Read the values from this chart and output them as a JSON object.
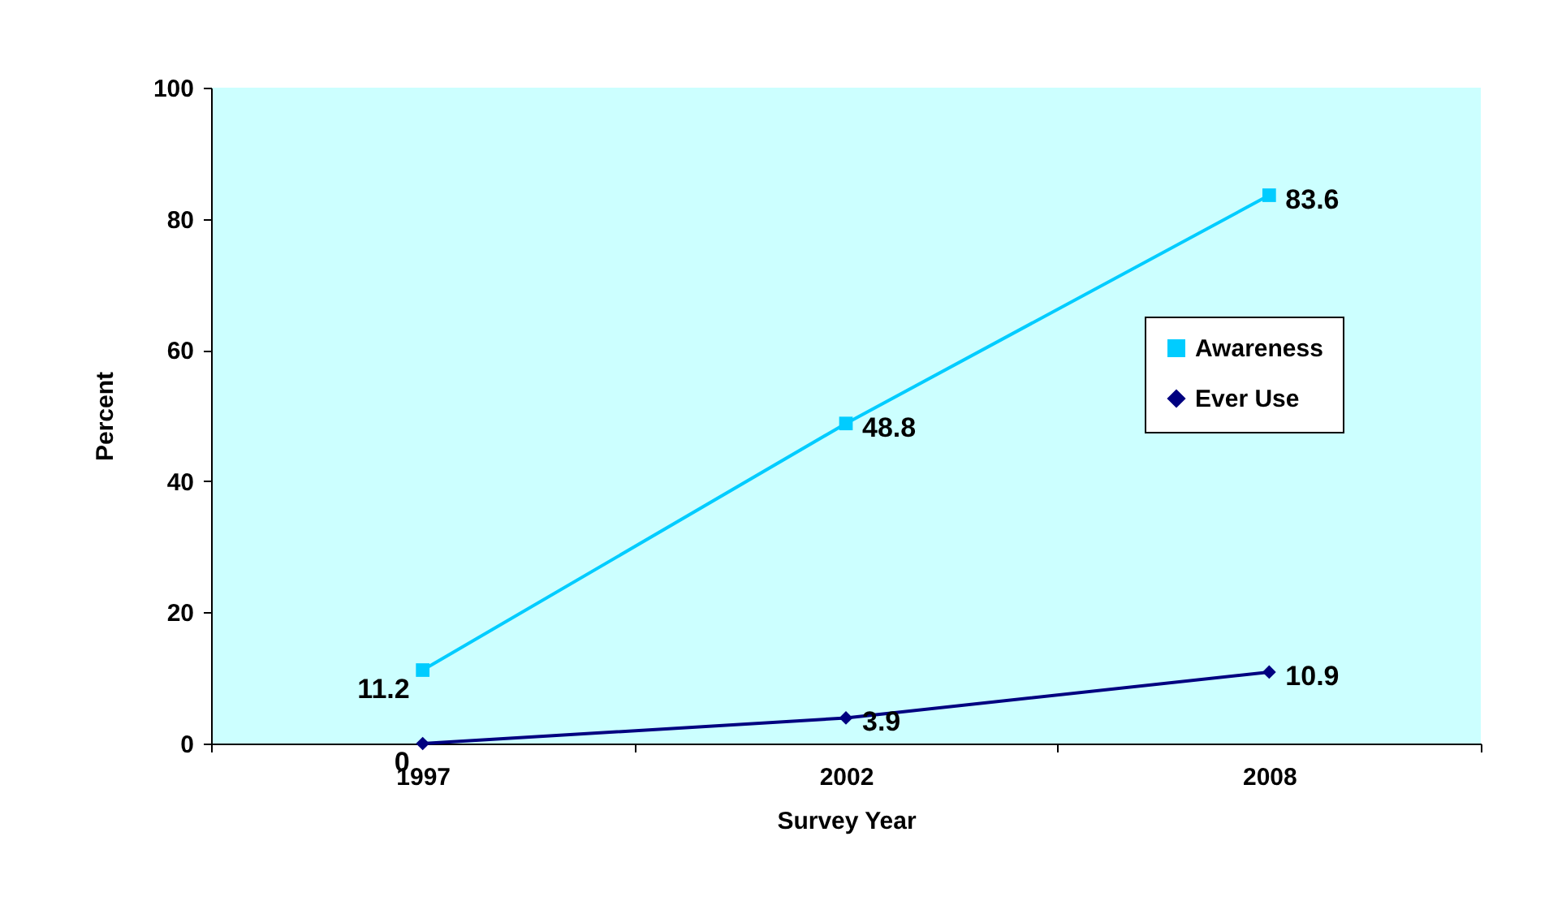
{
  "chart_data": {
    "type": "line",
    "xlabel": "Survey Year",
    "ylabel": "Percent",
    "categories": [
      "1997",
      "2002",
      "2008"
    ],
    "series": [
      {
        "name": "Awareness",
        "color": "#00ccff",
        "marker": "square",
        "values": [
          11.2,
          48.8,
          83.6
        ]
      },
      {
        "name": "Ever Use",
        "color": "#000080",
        "marker": "diamond",
        "values": [
          0,
          3.9,
          10.9
        ]
      }
    ],
    "ylim": [
      0,
      100
    ],
    "yticks": [
      0,
      20,
      40,
      60,
      80,
      100
    ],
    "grid": false,
    "legend": "right",
    "data_labels": true
  }
}
